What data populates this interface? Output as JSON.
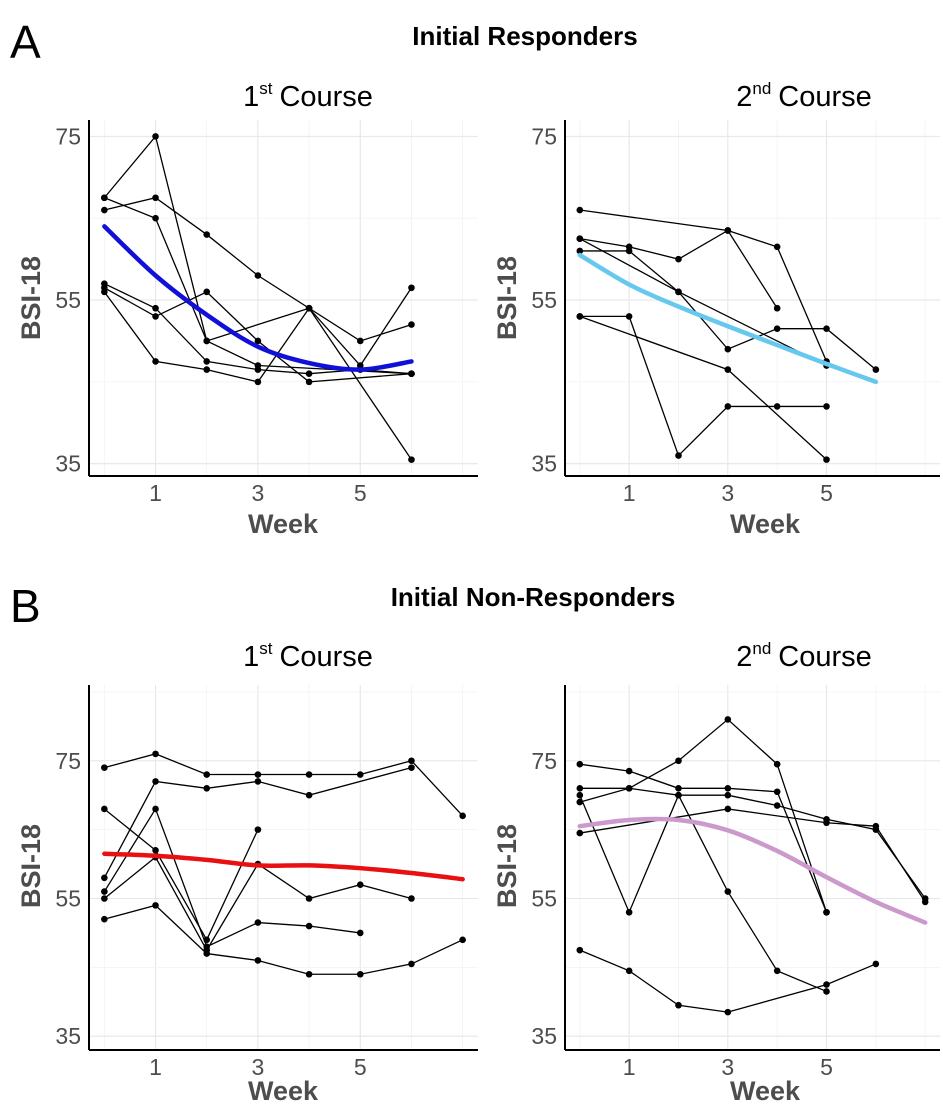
{
  "panels": {
    "A": {
      "letter": "A",
      "title": "Initial Responders",
      "charts": [
        {
          "course_ord": "1",
          "course_sup": "st",
          "course_word": "Course",
          "ylabel": "BSI-18",
          "xlabel": "Week",
          "trend_color": "#1010d8",
          "trajectories": [
            [
              [
                0,
                67.5
              ],
              [
                1,
                75
              ],
              [
                2,
                50
              ],
              [
                3,
                47
              ],
              [
                6,
                46
              ]
            ],
            [
              [
                0,
                67.5
              ],
              [
                1,
                65
              ],
              [
                2,
                50
              ],
              [
                4,
                54
              ],
              [
                6,
                35.5
              ]
            ],
            [
              [
                0,
                66
              ],
              [
                1,
                67.5
              ],
              [
                2,
                63
              ],
              [
                3,
                58
              ],
              [
                4,
                54
              ],
              [
                5,
                47
              ],
              [
                6,
                56.5
              ]
            ],
            [
              [
                0,
                56.5
              ],
              [
                1,
                53
              ],
              [
                2,
                56
              ],
              [
                3,
                50
              ],
              [
                4,
                45
              ],
              [
                6,
                46
              ]
            ],
            [
              [
                0,
                56
              ],
              [
                1,
                47.5
              ],
              [
                2,
                46.5
              ],
              [
                3,
                45
              ],
              [
                4,
                54
              ],
              [
                5,
                50
              ],
              [
                6,
                52
              ]
            ],
            [
              [
                0,
                57
              ],
              [
                1,
                54
              ],
              [
                2,
                47.5
              ],
              [
                3,
                46.5
              ],
              [
                4,
                46
              ],
              [
                5,
                46.5
              ],
              [
                6,
                46
              ]
            ]
          ],
          "trend": [
            [
              0,
              64
            ],
            [
              1,
              58
            ],
            [
              2,
              53.2
            ],
            [
              3,
              49.3
            ],
            [
              4,
              47.3
            ],
            [
              5,
              46.5
            ],
            [
              6,
              47.5
            ]
          ]
        },
        {
          "course_ord": "2",
          "course_sup": "nd",
          "course_word": "Course",
          "ylabel": "BSI-18",
          "xlabel": "Week",
          "trend_color": "#66c8ee",
          "trajectories": [
            [
              [
                0,
                66
              ],
              [
                3,
                63.5
              ],
              [
                4,
                61.5
              ],
              [
                5,
                47.5
              ]
            ],
            [
              [
                0,
                62.5
              ],
              [
                1,
                61.5
              ],
              [
                2,
                60
              ],
              [
                3,
                63.5
              ],
              [
                4,
                54
              ]
            ],
            [
              [
                0,
                62.5
              ],
              [
                2,
                56
              ],
              [
                5,
                47
              ]
            ],
            [
              [
                0,
                61
              ],
              [
                1,
                61
              ],
              [
                2,
                56
              ],
              [
                3,
                49
              ],
              [
                4,
                51.5
              ],
              [
                5,
                51.5
              ],
              [
                6,
                46.5
              ]
            ],
            [
              [
                0,
                53
              ],
              [
                1,
                53
              ],
              [
                2,
                36
              ],
              [
                3,
                42
              ],
              [
                4,
                42
              ],
              [
                5,
                42
              ]
            ],
            [
              [
                0,
                53
              ],
              [
                3,
                46.5
              ],
              [
                5,
                35.5
              ]
            ]
          ],
          "trend": [
            [
              0,
              60.5
            ],
            [
              1,
              56.9
            ],
            [
              2,
              54.2
            ],
            [
              3,
              51.8
            ],
            [
              4,
              49.5
            ],
            [
              5,
              47.2
            ],
            [
              6,
              45
            ]
          ]
        }
      ]
    },
    "B": {
      "letter": "B",
      "title": "Initial Non-Responders",
      "charts": [
        {
          "course_ord": "1",
          "course_sup": "st",
          "course_word": "Course",
          "ylabel": "BSI-18",
          "xlabel": "Week",
          "trend_color": "#e81010",
          "trajectories": [
            [
              [
                0,
                74
              ],
              [
                1,
                76
              ],
              [
                2,
                73
              ],
              [
                3,
                73
              ],
              [
                4,
                73
              ],
              [
                5,
                73
              ],
              [
                6,
                75
              ],
              [
                7,
                67
              ]
            ],
            [
              [
                0,
                68
              ],
              [
                1,
                62
              ],
              [
                2,
                49
              ],
              [
                3,
                65
              ]
            ],
            [
              [
                0,
                58
              ],
              [
                1,
                72
              ],
              [
                2,
                71
              ],
              [
                3,
                72
              ],
              [
                4,
                70
              ],
              [
                6,
                74
              ]
            ],
            [
              [
                0,
                56
              ],
              [
                1,
                68
              ],
              [
                2,
                48
              ],
              [
                3,
                51.5
              ],
              [
                4,
                51
              ],
              [
                5,
                50
              ]
            ],
            [
              [
                0,
                55
              ],
              [
                1,
                61
              ],
              [
                2,
                47.5
              ],
              [
                3,
                60
              ],
              [
                4,
                55
              ],
              [
                5,
                57
              ],
              [
                6,
                55
              ]
            ],
            [
              [
                0,
                52
              ],
              [
                1,
                54
              ],
              [
                2,
                47
              ],
              [
                3,
                46
              ],
              [
                4,
                44
              ],
              [
                5,
                44
              ],
              [
                6,
                45.5
              ],
              [
                7,
                49
              ]
            ]
          ],
          "trend": [
            [
              0,
              61.5
            ],
            [
              1,
              61.2
            ],
            [
              2,
              60.6
            ],
            [
              3,
              59.8
            ],
            [
              4,
              59.8
            ],
            [
              5,
              59.4
            ],
            [
              6,
              58.7
            ],
            [
              7,
              57.8
            ]
          ]
        },
        {
          "course_ord": "2",
          "course_sup": "nd",
          "course_word": "Course",
          "ylabel": "BSI-18",
          "xlabel": "Week",
          "trend_color": "#cc99cc",
          "trajectories": [
            [
              [
                0,
                74.5
              ],
              [
                1,
                73.5
              ],
              [
                2,
                71
              ],
              [
                3,
                71
              ],
              [
                4,
                70.5
              ],
              [
                5,
                53
              ]
            ],
            [
              [
                0,
                71
              ],
              [
                1,
                71
              ],
              [
                2,
                75
              ],
              [
                3,
                81
              ],
              [
                4,
                74.5
              ],
              [
                5,
                53
              ]
            ],
            [
              [
                0,
                70
              ],
              [
                1,
                53
              ],
              [
                2,
                70
              ],
              [
                3,
                56
              ],
              [
                4,
                44.5
              ],
              [
                5,
                41.5
              ]
            ],
            [
              [
                0,
                69
              ],
              [
                1,
                71
              ],
              [
                2,
                70
              ],
              [
                3,
                70
              ],
              [
                4,
                68.5
              ],
              [
                5,
                66.5
              ],
              [
                6,
                65
              ],
              [
                7,
                55
              ]
            ],
            [
              [
                0,
                64.5
              ],
              [
                3,
                68
              ],
              [
                5,
                66
              ],
              [
                6,
                65.5
              ],
              [
                7,
                54.5
              ]
            ],
            [
              [
                0,
                47.5
              ],
              [
                1,
                44.5
              ],
              [
                2,
                39.5
              ],
              [
                3,
                38.5
              ],
              [
                5,
                42.5
              ],
              [
                6,
                45.5
              ]
            ]
          ],
          "trend": [
            [
              0,
              65.5
            ],
            [
              1,
              66.4
            ],
            [
              2,
              66.4
            ],
            [
              3,
              64.9
            ],
            [
              4,
              61.9
            ],
            [
              5,
              58.1
            ],
            [
              6,
              54.5
            ],
            [
              7,
              51.5
            ]
          ]
        }
      ]
    }
  },
  "chart_data": [
    {
      "type": "line",
      "title": "1st Course",
      "group": "Initial Responders",
      "xlabel": "Week",
      "ylabel": "BSI-18",
      "xticks": [
        1,
        3,
        5
      ],
      "yticks": [
        35,
        55,
        75
      ],
      "xlim": [
        -0.3,
        7.3
      ],
      "ylim": [
        33.5,
        77
      ],
      "grid": true
    },
    {
      "type": "line",
      "title": "2nd Course",
      "group": "Initial Responders",
      "xlabel": "Week",
      "ylabel": "BSI-18",
      "xticks": [
        1,
        3,
        5
      ],
      "yticks": [
        35,
        55,
        75
      ],
      "xlim": [
        -0.3,
        7.3
      ],
      "ylim": [
        33.5,
        77
      ],
      "grid": true
    },
    {
      "type": "line",
      "title": "1st Course",
      "group": "Initial Non-Responders",
      "xlabel": "Week",
      "ylabel": "BSI-18",
      "xticks": [
        1,
        3,
        5
      ],
      "yticks": [
        35,
        55,
        75
      ],
      "xlim": [
        -0.3,
        7.3
      ],
      "ylim": [
        33,
        86
      ],
      "grid": true
    },
    {
      "type": "line",
      "title": "2nd Course",
      "group": "Initial Non-Responders",
      "xlabel": "Week",
      "ylabel": "BSI-18",
      "xticks": [
        1,
        3,
        5
      ],
      "yticks": [
        35,
        55,
        75
      ],
      "xlim": [
        -0.3,
        7.3
      ],
      "ylim": [
        33,
        86
      ],
      "grid": true
    }
  ]
}
